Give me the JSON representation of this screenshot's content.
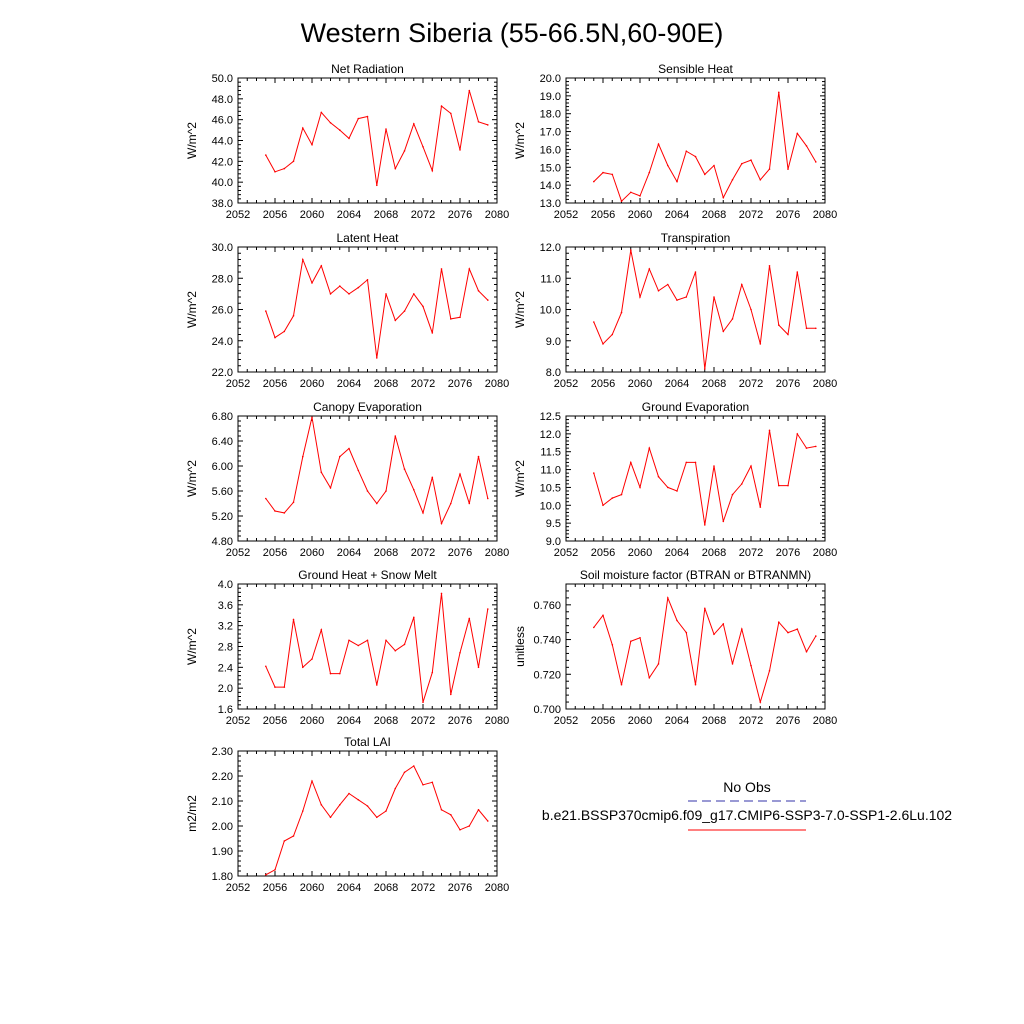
{
  "title": "Western Siberia (55-66.5N,60-90E)",
  "legend": {
    "obs_label": "No Obs",
    "model_label": "b.e21.BSSP370cmip6.f09_g17.CMIP6-SSP3-7.0-SSP1-2.6Lu.102",
    "obs_color": "#3333aa",
    "model_color": "#ff0000"
  },
  "chart_data": [
    {
      "type": "line",
      "title": "Net Radiation",
      "ylabel": "W/m^2",
      "xlim": [
        2052,
        2080
      ],
      "ylim": [
        38.0,
        50.0
      ],
      "xticks": [
        "2052",
        "2056",
        "2060",
        "2064",
        "2068",
        "2072",
        "2076",
        "2080"
      ],
      "yticks": [
        "38.0",
        "40.0",
        "42.0",
        "44.0",
        "46.0",
        "48.0",
        "50.0"
      ],
      "x": [
        2055,
        2056,
        2057,
        2058,
        2059,
        2060,
        2061,
        2062,
        2063,
        2064,
        2065,
        2066,
        2067,
        2068,
        2069,
        2070,
        2071,
        2072,
        2073,
        2074,
        2075,
        2076,
        2077,
        2078,
        2079
      ],
      "values": [
        42.6,
        41.0,
        41.3,
        42.0,
        45.2,
        43.6,
        46.7,
        45.7,
        45.0,
        44.2,
        46.1,
        46.3,
        39.7,
        45.1,
        41.3,
        43.0,
        45.6,
        43.4,
        41.1,
        47.3,
        46.6,
        43.1,
        48.8,
        45.8,
        45.5
      ]
    },
    {
      "type": "line",
      "title": "Sensible Heat",
      "ylabel": "W/m^2",
      "xlim": [
        2052,
        2080
      ],
      "ylim": [
        13.0,
        20.0
      ],
      "xticks": [
        "2052",
        "2056",
        "2060",
        "2064",
        "2068",
        "2072",
        "2076",
        "2080"
      ],
      "yticks": [
        "13.0",
        "14.0",
        "15.0",
        "16.0",
        "17.0",
        "18.0",
        "19.0",
        "20.0"
      ],
      "x": [
        2055,
        2056,
        2057,
        2058,
        2059,
        2060,
        2061,
        2062,
        2063,
        2064,
        2065,
        2066,
        2067,
        2068,
        2069,
        2070,
        2071,
        2072,
        2073,
        2074,
        2075,
        2076,
        2077,
        2078,
        2079
      ],
      "values": [
        14.2,
        14.7,
        14.6,
        13.1,
        13.6,
        13.4,
        14.7,
        16.3,
        15.1,
        14.2,
        15.9,
        15.6,
        14.6,
        15.1,
        13.3,
        14.3,
        15.2,
        15.4,
        14.3,
        14.9,
        19.2,
        14.9,
        16.9,
        16.2,
        15.3
      ]
    },
    {
      "type": "line",
      "title": "Latent Heat",
      "ylabel": "W/m^2",
      "xlim": [
        2052,
        2080
      ],
      "ylim": [
        22.0,
        30.0
      ],
      "xticks": [
        "2052",
        "2056",
        "2060",
        "2064",
        "2068",
        "2072",
        "2076",
        "2080"
      ],
      "yticks": [
        "22.0",
        "24.0",
        "26.0",
        "28.0",
        "30.0"
      ],
      "x": [
        2055,
        2056,
        2057,
        2058,
        2059,
        2060,
        2061,
        2062,
        2063,
        2064,
        2065,
        2066,
        2067,
        2068,
        2069,
        2070,
        2071,
        2072,
        2073,
        2074,
        2075,
        2076,
        2077,
        2078,
        2079
      ],
      "values": [
        25.9,
        24.2,
        24.6,
        25.6,
        29.2,
        27.7,
        28.8,
        27.0,
        27.5,
        27.0,
        27.4,
        27.9,
        22.9,
        27.0,
        25.3,
        25.9,
        27.0,
        26.2,
        24.5,
        28.6,
        25.4,
        25.5,
        28.6,
        27.2,
        26.6
      ]
    },
    {
      "type": "line",
      "title": "Transpiration",
      "ylabel": "W/m^2",
      "xlim": [
        2052,
        2080
      ],
      "ylim": [
        8.0,
        12.0
      ],
      "xticks": [
        "2052",
        "2056",
        "2060",
        "2064",
        "2068",
        "2072",
        "2076",
        "2080"
      ],
      "yticks": [
        "8.0",
        "9.0",
        "10.0",
        "11.0",
        "12.0"
      ],
      "x": [
        2055,
        2056,
        2057,
        2058,
        2059,
        2060,
        2061,
        2062,
        2063,
        2064,
        2065,
        2066,
        2067,
        2068,
        2069,
        2070,
        2071,
        2072,
        2073,
        2074,
        2075,
        2076,
        2077,
        2078,
        2079
      ],
      "values": [
        9.6,
        8.9,
        9.2,
        9.9,
        11.9,
        10.4,
        11.3,
        10.6,
        10.8,
        10.3,
        10.4,
        11.2,
        8.1,
        10.4,
        9.3,
        9.7,
        10.8,
        10.0,
        8.9,
        11.4,
        9.5,
        9.2,
        11.2,
        9.4,
        9.4
      ]
    },
    {
      "type": "line",
      "title": "Canopy Evaporation",
      "ylabel": "W/m^2",
      "xlim": [
        2052,
        2080
      ],
      "ylim": [
        4.8,
        6.8
      ],
      "xticks": [
        "2052",
        "2056",
        "2060",
        "2064",
        "2068",
        "2072",
        "2076",
        "2080"
      ],
      "yticks": [
        "4.80",
        "5.20",
        "5.60",
        "6.00",
        "6.40",
        "6.80"
      ],
      "x": [
        2055,
        2056,
        2057,
        2058,
        2059,
        2060,
        2061,
        2062,
        2063,
        2064,
        2065,
        2066,
        2067,
        2068,
        2069,
        2070,
        2071,
        2072,
        2073,
        2074,
        2075,
        2076,
        2077,
        2078,
        2079
      ],
      "values": [
        5.48,
        5.28,
        5.25,
        5.42,
        6.15,
        6.78,
        5.9,
        5.65,
        6.15,
        6.28,
        5.93,
        5.6,
        5.4,
        5.6,
        6.48,
        5.95,
        5.62,
        5.25,
        5.82,
        5.08,
        5.4,
        5.87,
        5.4,
        6.15,
        5.48
      ]
    },
    {
      "type": "line",
      "title": "Ground Evaporation",
      "ylabel": "W/m^2",
      "xlim": [
        2052,
        2080
      ],
      "ylim": [
        9.0,
        12.5
      ],
      "xticks": [
        "2052",
        "2056",
        "2060",
        "2064",
        "2068",
        "2072",
        "2076",
        "2080"
      ],
      "yticks": [
        "9.0",
        "9.5",
        "10.0",
        "10.5",
        "11.0",
        "11.5",
        "12.0",
        "12.5"
      ],
      "x": [
        2055,
        2056,
        2057,
        2058,
        2059,
        2060,
        2061,
        2062,
        2063,
        2064,
        2065,
        2066,
        2067,
        2068,
        2069,
        2070,
        2071,
        2072,
        2073,
        2074,
        2075,
        2076,
        2077,
        2078,
        2079
      ],
      "values": [
        10.9,
        10.0,
        10.2,
        10.3,
        11.2,
        10.5,
        11.6,
        10.8,
        10.5,
        10.4,
        11.2,
        11.2,
        9.45,
        11.1,
        9.55,
        10.3,
        10.6,
        11.1,
        9.95,
        12.1,
        10.55,
        10.55,
        12.0,
        11.6,
        11.65
      ]
    },
    {
      "type": "line",
      "title": "Ground Heat + Snow Melt",
      "ylabel": "W/m^2",
      "xlim": [
        2052,
        2080
      ],
      "ylim": [
        1.6,
        4.0
      ],
      "xticks": [
        "2052",
        "2056",
        "2060",
        "2064",
        "2068",
        "2072",
        "2076",
        "2080"
      ],
      "yticks": [
        "1.6",
        "2.0",
        "2.4",
        "2.8",
        "3.2",
        "3.6",
        "4.0"
      ],
      "x": [
        2055,
        2056,
        2057,
        2058,
        2059,
        2060,
        2061,
        2062,
        2063,
        2064,
        2065,
        2066,
        2067,
        2068,
        2069,
        2070,
        2071,
        2072,
        2073,
        2074,
        2075,
        2076,
        2077,
        2078,
        2079
      ],
      "values": [
        2.42,
        2.02,
        2.02,
        3.32,
        2.4,
        2.56,
        3.12,
        2.28,
        2.28,
        2.92,
        2.82,
        2.92,
        2.06,
        2.92,
        2.72,
        2.84,
        3.36,
        1.73,
        2.3,
        3.82,
        1.88,
        2.68,
        3.34,
        2.4,
        3.52
      ]
    },
    {
      "type": "line",
      "title": "Soil moisture factor (BTRAN or BTRANMN)",
      "ylabel": "unitless",
      "xlim": [
        2052,
        2080
      ],
      "ylim": [
        0.7,
        0.772
      ],
      "xticks": [
        "2052",
        "2056",
        "2060",
        "2064",
        "2068",
        "2072",
        "2076",
        "2080"
      ],
      "yticks": [
        "0.700",
        "0.720",
        "0.740",
        "0.760"
      ],
      "x": [
        2055,
        2056,
        2057,
        2058,
        2059,
        2060,
        2061,
        2062,
        2063,
        2064,
        2065,
        2066,
        2067,
        2068,
        2069,
        2070,
        2071,
        2072,
        2073,
        2074,
        2075,
        2076,
        2077,
        2078,
        2079
      ],
      "values": [
        0.747,
        0.754,
        0.737,
        0.714,
        0.739,
        0.741,
        0.718,
        0.726,
        0.764,
        0.751,
        0.744,
        0.714,
        0.758,
        0.743,
        0.749,
        0.726,
        0.746,
        0.725,
        0.704,
        0.722,
        0.75,
        0.744,
        0.746,
        0.733,
        0.742
      ]
    },
    {
      "type": "line",
      "title": "Total LAI",
      "ylabel": "m2/m2",
      "xlim": [
        2052,
        2080
      ],
      "ylim": [
        1.8,
        2.3
      ],
      "xticks": [
        "2052",
        "2056",
        "2060",
        "2064",
        "2068",
        "2072",
        "2076",
        "2080"
      ],
      "yticks": [
        "1.80",
        "1.90",
        "2.00",
        "2.10",
        "2.20",
        "2.30"
      ],
      "x": [
        2055,
        2056,
        2057,
        2058,
        2059,
        2060,
        2061,
        2062,
        2063,
        2064,
        2065,
        2066,
        2067,
        2068,
        2069,
        2070,
        2071,
        2072,
        2073,
        2074,
        2075,
        2076,
        2077,
        2078,
        2079
      ],
      "values": [
        1.805,
        1.825,
        1.94,
        1.96,
        2.06,
        2.18,
        2.085,
        2.035,
        2.085,
        2.13,
        2.105,
        2.08,
        2.035,
        2.06,
        2.15,
        2.215,
        2.24,
        2.165,
        2.175,
        2.065,
        2.045,
        1.985,
        2.0,
        2.065,
        2.02
      ]
    }
  ]
}
